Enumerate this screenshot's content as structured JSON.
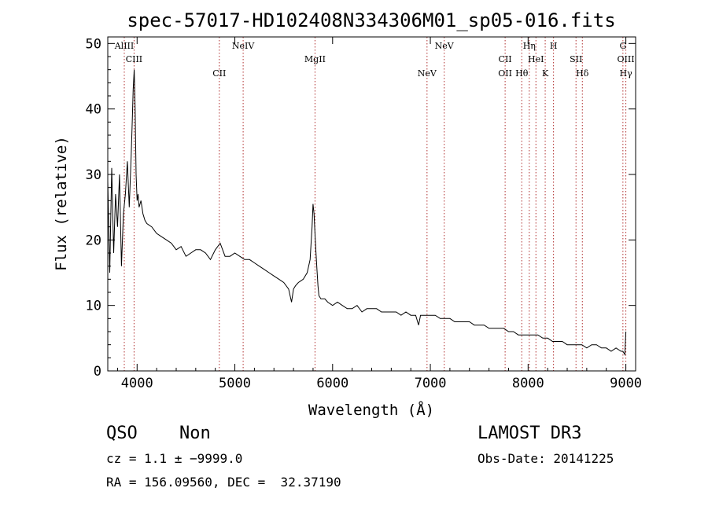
{
  "chart_data": {
    "type": "line",
    "title": "spec-57017-HD102408N334306M01_sp05-016.fits",
    "xlabel": "Wavelength (Å)",
    "ylabel": "Flux (relative)",
    "xlim": [
      3700,
      9100
    ],
    "ylim": [
      0,
      51
    ],
    "xticks": [
      4000,
      5000,
      6000,
      7000,
      8000,
      9000
    ],
    "xtick_labels": [
      "4000",
      "5000",
      "6000",
      "7000",
      "8000",
      "9000"
    ],
    "yticks": [
      0,
      10,
      20,
      30,
      40,
      50
    ],
    "ytick_labels": [
      "0",
      "10",
      "20",
      "30",
      "40",
      "50"
    ],
    "grid": false,
    "series": [
      {
        "x": [
          3700,
          3720,
          3740,
          3760,
          3780,
          3800,
          3820,
          3840,
          3860,
          3880,
          3900,
          3920,
          3940,
          3950,
          3960,
          3970,
          3980,
          3990,
          4000,
          4010,
          4020,
          4040,
          4060,
          4080,
          4100,
          4150,
          4200,
          4250,
          4300,
          4350,
          4400,
          4450,
          4500,
          4550,
          4600,
          4650,
          4700,
          4750,
          4800,
          4850,
          4900,
          4950,
          5000,
          5050,
          5100,
          5150,
          5200,
          5250,
          5300,
          5350,
          5400,
          5450,
          5500,
          5550,
          5580,
          5600,
          5620,
          5650,
          5700,
          5740,
          5770,
          5790,
          5800,
          5810,
          5820,
          5830,
          5840,
          5850,
          5860,
          5880,
          5900,
          5920,
          5950,
          6000,
          6050,
          6100,
          6150,
          6200,
          6250,
          6300,
          6350,
          6400,
          6450,
          6500,
          6550,
          6600,
          6650,
          6700,
          6750,
          6800,
          6850,
          6880,
          6900,
          6950,
          7000,
          7050,
          7100,
          7150,
          7200,
          7250,
          7300,
          7350,
          7400,
          7450,
          7500,
          7550,
          7600,
          7650,
          7700,
          7750,
          7800,
          7850,
          7900,
          7950,
          8000,
          8050,
          8100,
          8150,
          8200,
          8250,
          8300,
          8350,
          8400,
          8450,
          8500,
          8550,
          8600,
          8650,
          8700,
          8750,
          8800,
          8850,
          8900,
          8950,
          8970,
          8990,
          9000
        ],
        "y": [
          29,
          15,
          31,
          18,
          27,
          22,
          30,
          16,
          24,
          27,
          32,
          25,
          33,
          38,
          43,
          46,
          40,
          30,
          26,
          27,
          25,
          26,
          24,
          23,
          22.5,
          22,
          21,
          20.5,
          20,
          19.5,
          18.5,
          19,
          17.5,
          18,
          18.5,
          18.5,
          18,
          17,
          18.5,
          19.5,
          17.5,
          17.5,
          18,
          17.5,
          17,
          17,
          16.5,
          16,
          15.5,
          15,
          14.5,
          14,
          13.5,
          12.5,
          10.5,
          12.5,
          13,
          13.5,
          14,
          15,
          17,
          22,
          25.5,
          24,
          21,
          18,
          15.5,
          13,
          11.5,
          11,
          11,
          11,
          10.5,
          10,
          10.5,
          10,
          9.5,
          9.5,
          10,
          9,
          9.5,
          9.5,
          9.5,
          9,
          9,
          9,
          9,
          8.5,
          9,
          8.5,
          8.5,
          7,
          8.5,
          8.5,
          8.5,
          8.5,
          8,
          8,
          8,
          7.5,
          7.5,
          7.5,
          7.5,
          7,
          7,
          7,
          6.5,
          6.5,
          6.5,
          6.5,
          6,
          6,
          5.5,
          5.5,
          5.5,
          5.5,
          5.5,
          5,
          5,
          4.5,
          4.5,
          4.5,
          4,
          4,
          4,
          4,
          3.5,
          4,
          4,
          3.5,
          3.5,
          3,
          3.5,
          3,
          3,
          2.5,
          6
        ]
      }
    ],
    "lines": [
      {
        "x": 3869,
        "labels": [
          "AlIII"
        ]
      },
      {
        "x": 3969,
        "labels": [
          "CIII"
        ]
      },
      {
        "x": 4841,
        "labels": [
          "CII"
        ]
      },
      {
        "x": 5085,
        "labels": [
          "NeIV"
        ]
      },
      {
        "x": 5820,
        "labels": [
          "MgII"
        ]
      },
      {
        "x": 6966,
        "labels": [
          "NeV"
        ]
      },
      {
        "x": 7142,
        "labels": [
          "NeV"
        ]
      },
      {
        "x": 7765,
        "labels": [
          "CII",
          "OII"
        ]
      },
      {
        "x": 7935,
        "labels": [
          "Hθ"
        ]
      },
      {
        "x": 8012,
        "labels": [
          "Hη"
        ]
      },
      {
        "x": 8080,
        "labels": [
          "HeI"
        ]
      },
      {
        "x": 8175,
        "labels": [
          "K"
        ]
      },
      {
        "x": 8260,
        "labels": [
          "H"
        ]
      },
      {
        "x": 8490,
        "labels": [
          "SII"
        ]
      },
      {
        "x": 8555,
        "labels": [
          "Hδ"
        ]
      },
      {
        "x": 8970,
        "labels": [
          "G"
        ]
      },
      {
        "x": 9000,
        "labels": [
          "OIII",
          "Hγ"
        ]
      }
    ]
  },
  "info": {
    "class": "QSO",
    "subclass": "Non",
    "survey": "LAMOST DR3",
    "cz": "cz = 1.1 ± −9999.0",
    "obs_date": "Obs-Date: 20141225",
    "radec": "RA = 156.09560, DEC =  32.37190"
  }
}
